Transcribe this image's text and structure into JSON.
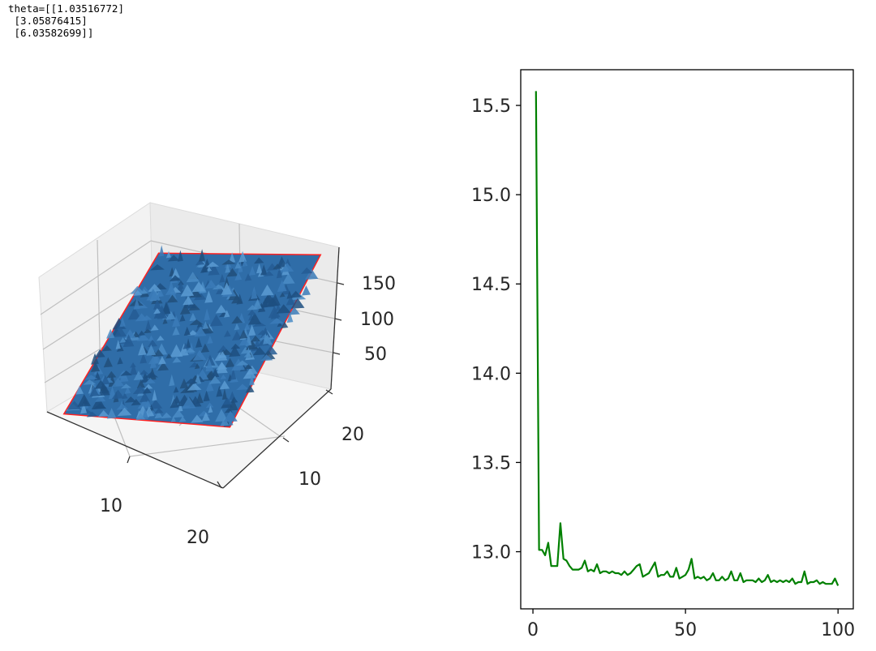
{
  "output": {
    "lines": [
      "theta=[[1.03516772]",
      " [3.05876415]",
      " [6.03582699]]"
    ]
  },
  "chart_data": [
    {
      "type": "surface3d",
      "title": "",
      "x_ticks": [
        10,
        20
      ],
      "y_ticks": [
        10,
        20
      ],
      "z_ticks": [
        50,
        100,
        150
      ],
      "x_range": [
        0,
        25
      ],
      "y_range": [
        0,
        25
      ],
      "z_range": [
        0,
        175
      ],
      "grid": true,
      "colors": {
        "surface": "#2f6da8",
        "base": "#ff2020"
      }
    },
    {
      "type": "line",
      "title": "",
      "xlabel": "",
      "ylabel": "",
      "xlim": [
        -4,
        105
      ],
      "ylim": [
        12.68,
        15.7
      ],
      "x_ticks": [
        0,
        50,
        100
      ],
      "y_ticks": [
        13.0,
        13.5,
        14.0,
        14.5,
        15.0,
        15.5
      ],
      "grid": false,
      "series": [
        {
          "color": "#008000",
          "x": [
            1,
            2,
            3,
            4,
            5,
            6,
            7,
            8,
            9,
            10,
            11,
            12,
            13,
            14,
            15,
            16,
            17,
            18,
            19,
            20,
            21,
            22,
            23,
            24,
            25,
            26,
            27,
            28,
            29,
            30,
            31,
            32,
            33,
            34,
            35,
            36,
            37,
            38,
            39,
            40,
            41,
            42,
            43,
            44,
            45,
            46,
            47,
            48,
            49,
            50,
            51,
            52,
            53,
            54,
            55,
            56,
            57,
            58,
            59,
            60,
            61,
            62,
            63,
            64,
            65,
            66,
            67,
            68,
            69,
            70,
            71,
            72,
            73,
            74,
            75,
            76,
            77,
            78,
            79,
            80,
            81,
            82,
            83,
            84,
            85,
            86,
            87,
            88,
            89,
            90,
            91,
            92,
            93,
            94,
            95,
            96,
            97,
            98,
            99,
            100
          ],
          "values": [
            15.58,
            13.01,
            13.01,
            12.98,
            13.05,
            12.92,
            12.92,
            12.92,
            13.16,
            12.96,
            12.95,
            12.92,
            12.9,
            12.9,
            12.9,
            12.91,
            12.95,
            12.89,
            12.9,
            12.89,
            12.93,
            12.88,
            12.89,
            12.89,
            12.88,
            12.89,
            12.88,
            12.88,
            12.87,
            12.89,
            12.87,
            12.88,
            12.9,
            12.92,
            12.93,
            12.86,
            12.87,
            12.88,
            12.91,
            12.94,
            12.86,
            12.87,
            12.87,
            12.89,
            12.86,
            12.86,
            12.91,
            12.85,
            12.86,
            12.87,
            12.9,
            12.96,
            12.85,
            12.86,
            12.85,
            12.86,
            12.84,
            12.85,
            12.88,
            12.84,
            12.84,
            12.86,
            12.84,
            12.85,
            12.89,
            12.84,
            12.84,
            12.88,
            12.83,
            12.84,
            12.84,
            12.84,
            12.83,
            12.85,
            12.83,
            12.84,
            12.87,
            12.83,
            12.84,
            12.83,
            12.84,
            12.83,
            12.84,
            12.83,
            12.85,
            12.82,
            12.83,
            12.83,
            12.89,
            12.82,
            12.83,
            12.83,
            12.84,
            12.82,
            12.83,
            12.82,
            12.82,
            12.82,
            12.85,
            12.81
          ]
        }
      ]
    }
  ]
}
